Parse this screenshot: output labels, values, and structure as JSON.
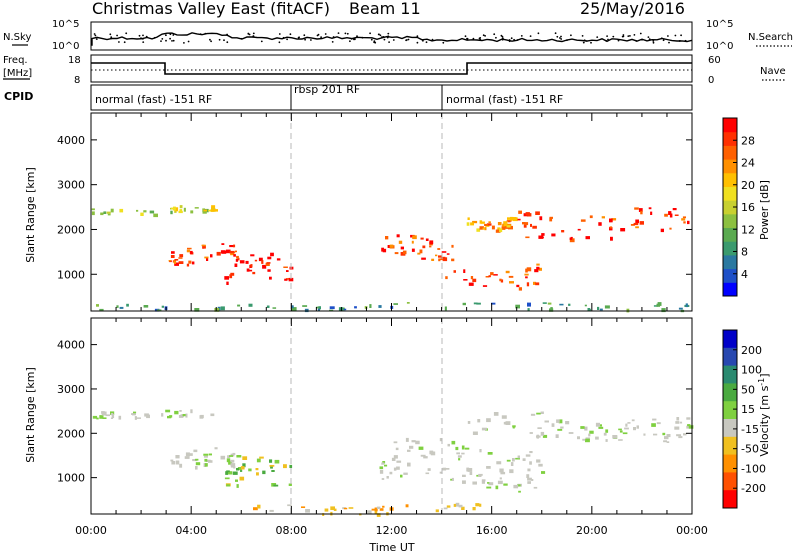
{
  "header": {
    "radar": "Christmas Valley East (fitACF)",
    "beam": "Beam 11",
    "date": "25/May/2016"
  },
  "noise_panel": {
    "left_label": "N.Sky",
    "right_label": "N.Search",
    "y_ticks_left": [
      "10^5",
      "10^0"
    ],
    "y_ticks_right": [
      "10^5",
      "10^0"
    ]
  },
  "freq_panel": {
    "left_label_1": "Freq.",
    "left_label_2": "[MHz]",
    "right_label": "Nave",
    "y_ticks_left": [
      "18",
      "8"
    ],
    "y_ticks_right": [
      "60",
      "0"
    ]
  },
  "cpid_panel": {
    "label": "CPID",
    "modes": [
      {
        "start_hour": 0,
        "end_hour": 8,
        "label": "normal (fast) -151 RF"
      },
      {
        "start_hour": 8,
        "end_hour": 14,
        "label": "rbsp 201 RF"
      },
      {
        "start_hour": 14,
        "end_hour": 24,
        "label": "normal (fast) -151 RF"
      }
    ]
  },
  "chart_data": [
    {
      "type": "heatmap",
      "name": "power",
      "ylabel": "Slant Range [km]",
      "xlabel": "",
      "xlim_hours": [
        0,
        24
      ],
      "ylim_km": [
        180,
        4600
      ],
      "y_ticks": [
        "1000",
        "2000",
        "3000",
        "4000"
      ],
      "colorbar": {
        "label": "Power [dB]",
        "ticks": [
          "4",
          "8",
          "12",
          "16",
          "20",
          "24",
          "28"
        ],
        "colors": [
          "#0000ff",
          "#1e50c8",
          "#2a78a0",
          "#3a9a6e",
          "#5aaa50",
          "#8cc040",
          "#c8d030",
          "#f0e020",
          "#ffc000",
          "#ff9000",
          "#ff6000",
          "#ff3000",
          "#ff0000"
        ]
      },
      "features": [
        {
          "x0": 0.0,
          "x1": 5.0,
          "y0": 2350,
          "y1": 2550,
          "level": 6
        },
        {
          "x0": 3.0,
          "x1": 6.0,
          "y0": 1200,
          "y1": 1700,
          "level": 11
        },
        {
          "x0": 5.3,
          "x1": 8.0,
          "y0": 800,
          "y1": 1500,
          "level": 12
        },
        {
          "x0": 11.5,
          "x1": 14.5,
          "y0": 1300,
          "y1": 1900,
          "level": 11
        },
        {
          "x0": 14.0,
          "x1": 18.0,
          "y0": 700,
          "y1": 1250,
          "level": 11
        },
        {
          "x0": 15.0,
          "x1": 17.0,
          "y0": 2000,
          "y1": 2300,
          "level": 9
        },
        {
          "x0": 17.0,
          "x1": 24.0,
          "y0": 1800,
          "y1": 2500,
          "level": 11
        },
        {
          "x0": 0.0,
          "x1": 24.0,
          "y0": 180,
          "y1": 400,
          "level": 3
        }
      ]
    },
    {
      "type": "heatmap",
      "name": "velocity",
      "ylabel": "Slant Range [km]",
      "xlabel": "Time UT",
      "xlim_hours": [
        0,
        24
      ],
      "ylim_km": [
        180,
        4600
      ],
      "y_ticks": [
        "1000",
        "2000",
        "3000",
        "4000"
      ],
      "x_ticks": [
        "00:00",
        "04:00",
        "08:00",
        "12:00",
        "16:00",
        "20:00",
        "00:00"
      ],
      "colorbar": {
        "label": "Velocity [m s^-1]",
        "ticks": [
          "200",
          "100",
          "50",
          "15",
          "-15",
          "-50",
          "-100",
          "-200"
        ],
        "colors": [
          "#0000c8",
          "#2848b0",
          "#2a8a70",
          "#4aaa40",
          "#7fd040",
          "#c8c8c0",
          "#f0c020",
          "#ff9000",
          "#ff5000",
          "#ff0000"
        ]
      },
      "features": [
        {
          "x0": 0.0,
          "x1": 5.0,
          "y0": 2350,
          "y1": 2550,
          "class": "ground"
        },
        {
          "x0": 3.0,
          "x1": 6.0,
          "y0": 1200,
          "y1": 1700,
          "class": "ground"
        },
        {
          "x0": 5.3,
          "x1": 8.0,
          "y0": 800,
          "y1": 1500,
          "class": "green"
        },
        {
          "x0": 11.5,
          "x1": 18.0,
          "y0": 700,
          "y1": 1900,
          "class": "ground"
        },
        {
          "x0": 15.0,
          "x1": 24.0,
          "y0": 1800,
          "y1": 2500,
          "class": "ground"
        },
        {
          "x0": 6.0,
          "x1": 16.0,
          "y0": 180,
          "y1": 450,
          "class": "orange"
        }
      ]
    }
  ]
}
